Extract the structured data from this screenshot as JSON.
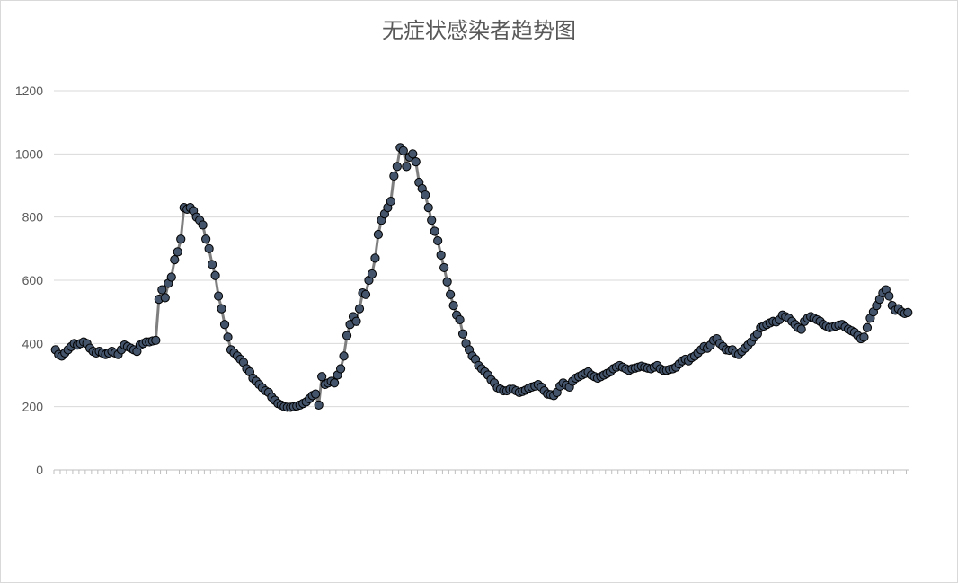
{
  "chart_data": {
    "type": "line",
    "title": "无症状感染者趋势图",
    "xlabel": "",
    "ylabel": "",
    "ylim": [
      0,
      1200
    ],
    "yticks": [
      0,
      200,
      400,
      600,
      800,
      1000,
      1200
    ],
    "grid": true,
    "legend": "none",
    "line_color": "#7f7f7f",
    "marker_fill": "#44546a",
    "marker_edge": "#000000",
    "values": [
      380,
      365,
      360,
      370,
      380,
      390,
      400,
      395,
      400,
      405,
      400,
      385,
      375,
      370,
      375,
      370,
      365,
      370,
      375,
      370,
      365,
      380,
      395,
      390,
      385,
      380,
      375,
      395,
      400,
      405,
      405,
      408,
      410,
      540,
      570,
      545,
      590,
      610,
      665,
      690,
      730,
      830,
      825,
      830,
      820,
      800,
      790,
      775,
      730,
      700,
      650,
      615,
      550,
      510,
      460,
      420,
      380,
      370,
      360,
      350,
      340,
      320,
      310,
      290,
      280,
      270,
      260,
      250,
      245,
      230,
      220,
      210,
      205,
      200,
      198,
      198,
      200,
      202,
      205,
      210,
      215,
      225,
      235,
      240,
      205,
      295,
      270,
      275,
      280,
      275,
      300,
      320,
      360,
      425,
      460,
      485,
      470,
      510,
      560,
      555,
      600,
      620,
      670,
      745,
      790,
      810,
      830,
      850,
      930,
      960,
      1020,
      1010,
      960,
      990,
      1000,
      975,
      910,
      890,
      870,
      830,
      790,
      755,
      725,
      680,
      640,
      595,
      555,
      520,
      490,
      475,
      430,
      400,
      380,
      360,
      350,
      330,
      320,
      310,
      300,
      285,
      275,
      260,
      255,
      250,
      250,
      255,
      255,
      250,
      245,
      248,
      252,
      258,
      262,
      265,
      270,
      262,
      250,
      240,
      238,
      235,
      245,
      265,
      275,
      268,
      262,
      280,
      290,
      295,
      300,
      305,
      310,
      300,
      295,
      290,
      295,
      300,
      305,
      310,
      320,
      325,
      330,
      325,
      320,
      315,
      320,
      322,
      325,
      328,
      325,
      322,
      320,
      325,
      330,
      320,
      315,
      315,
      318,
      320,
      325,
      335,
      345,
      350,
      345,
      355,
      360,
      370,
      380,
      390,
      385,
      395,
      410,
      415,
      400,
      390,
      380,
      378,
      380,
      370,
      365,
      375,
      385,
      395,
      405,
      420,
      430,
      450,
      455,
      460,
      465,
      470,
      468,
      475,
      490,
      485,
      480,
      470,
      460,
      450,
      445,
      470,
      480,
      485,
      480,
      475,
      470,
      460,
      455,
      450,
      452,
      455,
      458,
      460,
      452,
      445,
      440,
      435,
      425,
      415,
      420,
      450,
      480,
      500,
      520,
      540,
      560,
      570,
      550,
      520,
      505,
      510,
      500,
      495,
      498
    ]
  }
}
